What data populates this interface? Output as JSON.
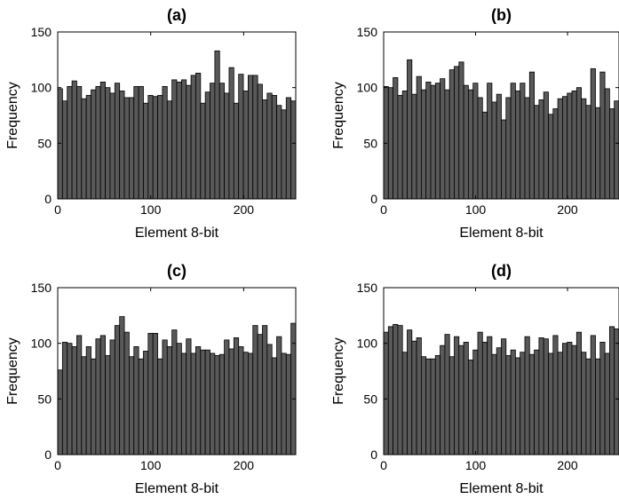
{
  "figure": {
    "x_tick_labels": [
      "0",
      "100",
      "200"
    ],
    "y_tick_labels": [
      "0",
      "50",
      "100",
      "150"
    ]
  },
  "chart_data": [
    {
      "type": "bar",
      "title": "(a)",
      "xlabel": "Element 8-bit",
      "ylabel": "Frequency",
      "xlim": [
        0,
        256
      ],
      "ylim": [
        0,
        150
      ],
      "xticks": [
        0,
        100,
        200
      ],
      "yticks": [
        0,
        50,
        100,
        150
      ],
      "bin_width": 5.12,
      "values": [
        99,
        88,
        101,
        106,
        101,
        90,
        93,
        98,
        101,
        105,
        100,
        95,
        104,
        97,
        91,
        91,
        101,
        101,
        86,
        93,
        92,
        93,
        101,
        88,
        107,
        105,
        107,
        102,
        111,
        113,
        86,
        96,
        104,
        133,
        104,
        95,
        118,
        86,
        112,
        97,
        111,
        111,
        103,
        89,
        95,
        93,
        84,
        80,
        91,
        88
      ]
    },
    {
      "type": "bar",
      "title": "(b)",
      "xlabel": "Element 8-bit",
      "ylabel": "Frequency",
      "xlim": [
        0,
        256
      ],
      "ylim": [
        0,
        150
      ],
      "xticks": [
        0,
        100,
        200
      ],
      "yticks": [
        0,
        50,
        100,
        150
      ],
      "bin_width": 5.12,
      "values": [
        101,
        100,
        109,
        93,
        97,
        125,
        94,
        110,
        98,
        105,
        102,
        104,
        108,
        98,
        116,
        119,
        123,
        102,
        98,
        104,
        91,
        78,
        104,
        87,
        94,
        71,
        91,
        104,
        97,
        104,
        91,
        114,
        84,
        89,
        96,
        76,
        81,
        90,
        92,
        95,
        97,
        100,
        90,
        84,
        117,
        82,
        114,
        99,
        81,
        88
      ]
    },
    {
      "type": "bar",
      "title": "(c)",
      "xlabel": "Element 8-bit",
      "ylabel": "Frequency",
      "xlim": [
        0,
        256
      ],
      "ylim": [
        0,
        150
      ],
      "xticks": [
        0,
        100,
        200
      ],
      "yticks": [
        0,
        50,
        100,
        150
      ],
      "bin_width": 5.12,
      "values": [
        76,
        101,
        100,
        97,
        107,
        88,
        97,
        86,
        104,
        107,
        89,
        103,
        116,
        124,
        110,
        88,
        97,
        86,
        93,
        109,
        109,
        86,
        103,
        97,
        112,
        100,
        91,
        104,
        91,
        97,
        94,
        94,
        91,
        89,
        90,
        103,
        95,
        105,
        97,
        92,
        91,
        116,
        108,
        116,
        99,
        87,
        106,
        91,
        90,
        118
      ]
    },
    {
      "type": "bar",
      "title": "(d)",
      "xlabel": "Element 8-bit",
      "ylabel": "Frequency",
      "xlim": [
        0,
        256
      ],
      "ylim": [
        0,
        150
      ],
      "xticks": [
        0,
        100,
        200
      ],
      "yticks": [
        0,
        50,
        100,
        150
      ],
      "bin_width": 5.12,
      "values": [
        110,
        115,
        117,
        116,
        92,
        112,
        102,
        105,
        88,
        86,
        86,
        89,
        98,
        108,
        88,
        106,
        98,
        101,
        85,
        94,
        110,
        101,
        106,
        90,
        96,
        104,
        89,
        94,
        87,
        92,
        106,
        90,
        94,
        105,
        104,
        91,
        107,
        92,
        100,
        101,
        98,
        110,
        92,
        86,
        107,
        86,
        101,
        91,
        115,
        113
      ]
    }
  ]
}
